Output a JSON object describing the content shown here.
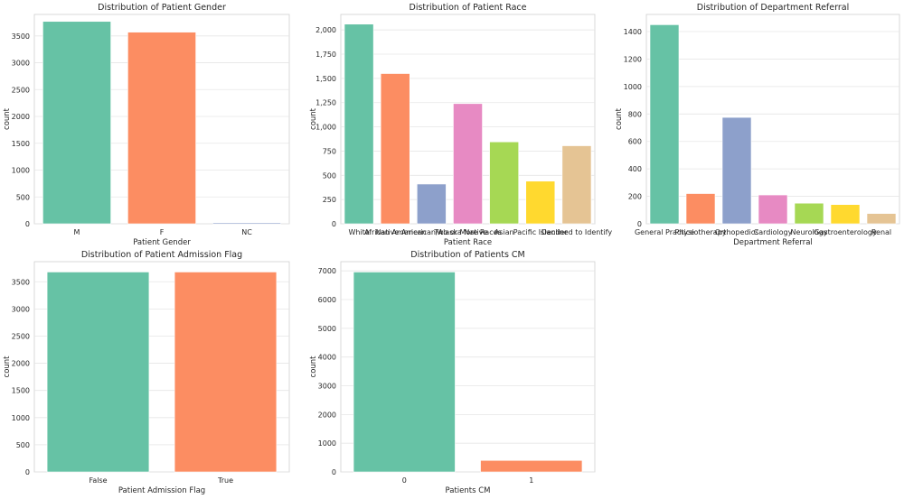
{
  "chart_data": [
    {
      "type": "bar",
      "title": "Distribution of Patient Gender",
      "xlabel": "Patient Gender",
      "ylabel": "count",
      "categories": [
        "M",
        "F",
        "NC"
      ],
      "values": [
        3770,
        3570,
        20
      ],
      "ylim": [
        0,
        3900
      ],
      "yticks": [
        0,
        500,
        1000,
        1500,
        2000,
        2500,
        3000,
        3500
      ],
      "ytick_labels": [
        "0",
        "500",
        "1000",
        "1500",
        "2000",
        "2500",
        "3000",
        "3500"
      ],
      "colors": [
        "#66c2a5",
        "#fc8d62",
        "#8da0cb"
      ],
      "grid": true
    },
    {
      "type": "bar",
      "title": "Distribution of Patient Race",
      "xlabel": "Patient Race",
      "ylabel": "count",
      "categories": [
        "White",
        "African American",
        "Native American/Alaska Native",
        "Two or More Races",
        "Asian",
        "Pacific Islander",
        "Declined to Identify"
      ],
      "values": [
        2060,
        1550,
        410,
        1240,
        845,
        440,
        805
      ],
      "ylim": [
        0,
        2160
      ],
      "yticks": [
        0,
        250,
        500,
        750,
        1000,
        1250,
        1500,
        1750,
        2000
      ],
      "ytick_labels": [
        "0",
        "250",
        "500",
        "750",
        "1,000",
        "1,250",
        "1,500",
        "1,750",
        "2,000"
      ],
      "colors": [
        "#66c2a5",
        "#fc8d62",
        "#8da0cb",
        "#e78ac3",
        "#a6d854",
        "#ffd92f",
        "#e5c494"
      ],
      "grid": true
    },
    {
      "type": "bar",
      "title": "Distribution of Department Referral",
      "xlabel": "Department Referral",
      "ylabel": "count",
      "categories": [
        "General Practice",
        "Physiotherapy",
        "Orthopedics",
        "Cardiology",
        "Neurology",
        "Gastroenterology",
        "Renal"
      ],
      "values": [
        1450,
        220,
        775,
        210,
        150,
        140,
        75
      ],
      "ylim": [
        0,
        1525
      ],
      "yticks": [
        0,
        200,
        400,
        600,
        800,
        1000,
        1200,
        1400
      ],
      "ytick_labels": [
        "0",
        "200",
        "400",
        "600",
        "800",
        "1000",
        "1200",
        "1400"
      ],
      "colors": [
        "#66c2a5",
        "#fc8d62",
        "#8da0cb",
        "#e78ac3",
        "#a6d854",
        "#ffd92f",
        "#e5c494"
      ],
      "grid": true
    },
    {
      "type": "bar",
      "title": "Distribution of Patient Admission Flag",
      "xlabel": "Patient Admission Flag",
      "ylabel": "count",
      "categories": [
        "False",
        "True"
      ],
      "values": [
        3680,
        3680
      ],
      "ylim": [
        0,
        3870
      ],
      "yticks": [
        0,
        500,
        1000,
        1500,
        2000,
        2500,
        3000,
        3500
      ],
      "ytick_labels": [
        "0",
        "500",
        "1000",
        "1500",
        "2000",
        "2500",
        "3000",
        "3500"
      ],
      "colors": [
        "#66c2a5",
        "#fc8d62"
      ],
      "grid": true
    },
    {
      "type": "bar",
      "title": "Distribution of Patients CM",
      "xlabel": "Patients CM",
      "ylabel": "count",
      "categories": [
        "0",
        "1"
      ],
      "values": [
        6960,
        400
      ],
      "ylim": [
        0,
        7320
      ],
      "yticks": [
        0,
        1000,
        2000,
        3000,
        4000,
        5000,
        6000,
        7000
      ],
      "ytick_labels": [
        "0",
        "1000",
        "2000",
        "3000",
        "4000",
        "5000",
        "6000",
        "7000"
      ],
      "colors": [
        "#66c2a5",
        "#fc8d62"
      ],
      "grid": true
    }
  ]
}
